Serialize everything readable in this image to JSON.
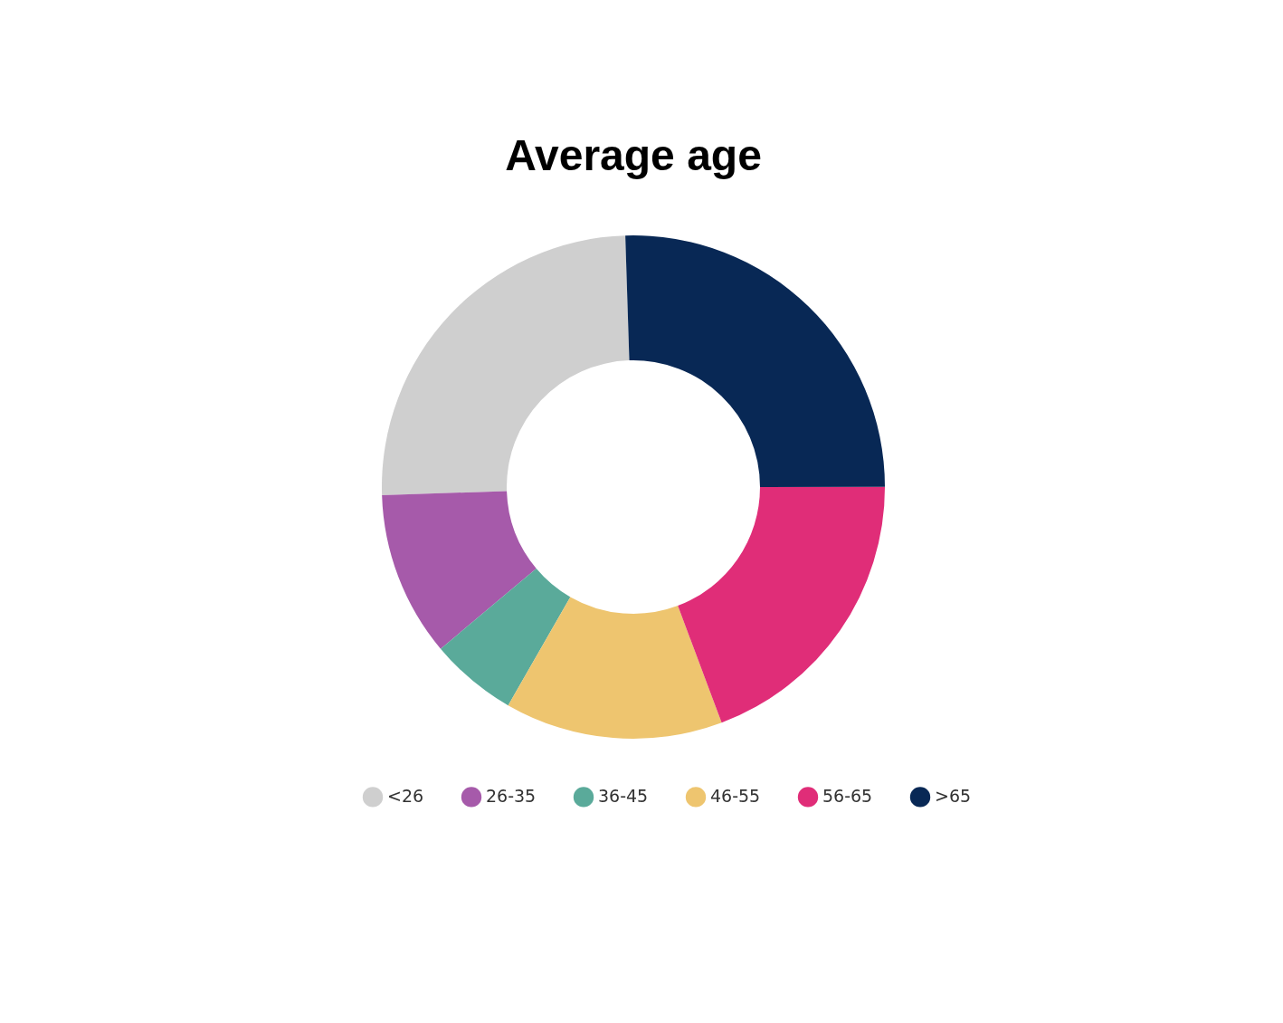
{
  "chart_data": {
    "type": "donut",
    "title": "Average age",
    "categories": [
      "<26",
      "26-35",
      "36-45",
      "46-55",
      "56-65",
      ">65"
    ],
    "values": [
      25,
      10.6,
      5.6,
      14,
      19.3,
      25.5
    ],
    "colors": [
      "#cfcfcf",
      "#a65aaa",
      "#5aaa9a",
      "#eec56f",
      "#e02d78",
      "#082855"
    ],
    "legend": "bottom"
  }
}
